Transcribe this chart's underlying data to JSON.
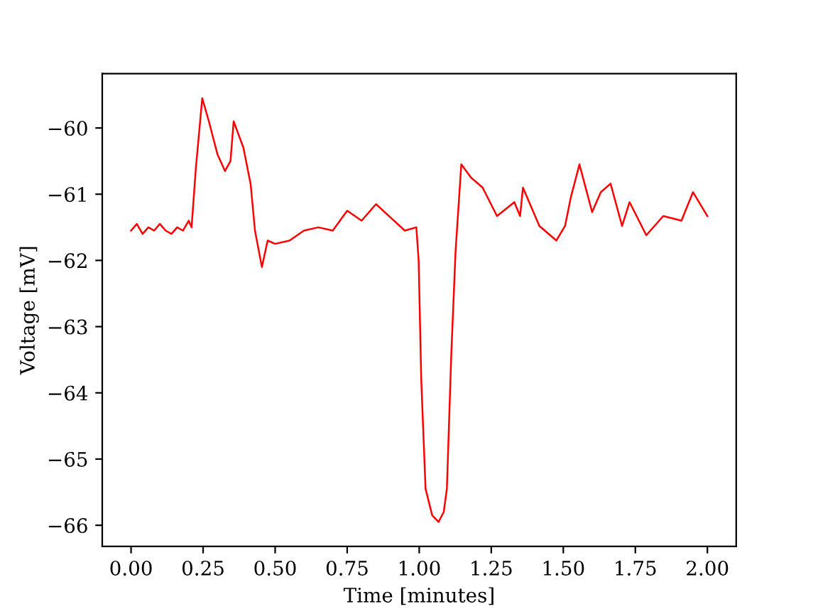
{
  "chart_data": {
    "type": "line",
    "xlabel": "Time [minutes]",
    "ylabel": "Voltage [mV]",
    "xlim": [
      -0.1,
      2.1
    ],
    "ylim": [
      -66.32,
      -59.18
    ],
    "xticks": [
      {
        "value": 0,
        "label": "0.00"
      },
      {
        "value": 0.25,
        "label": "0.25"
      },
      {
        "value": 0.5,
        "label": "0.50"
      },
      {
        "value": 0.75,
        "label": "0.75"
      },
      {
        "value": 1,
        "label": "1.00"
      },
      {
        "value": 1.25,
        "label": "1.25"
      },
      {
        "value": 1.5,
        "label": "1.50"
      },
      {
        "value": 1.75,
        "label": "1.75"
      },
      {
        "value": 2,
        "label": "2.00"
      }
    ],
    "yticks": [
      {
        "value": -66,
        "label": "−66"
      },
      {
        "value": -65,
        "label": "−65"
      },
      {
        "value": -64,
        "label": "−64"
      },
      {
        "value": -63,
        "label": "−63"
      },
      {
        "value": -62,
        "label": "−62"
      },
      {
        "value": -61,
        "label": "−61"
      },
      {
        "value": -60,
        "label": "−60"
      }
    ],
    "grid": false,
    "marker": "none",
    "line_style": "solid",
    "series": [
      {
        "color": "#ff0000",
        "x": [
          0.0,
          0.02,
          0.04,
          0.06,
          0.08,
          0.1,
          0.12,
          0.14,
          0.16,
          0.18,
          0.2,
          0.21,
          0.225,
          0.247,
          0.27,
          0.3,
          0.326,
          0.345,
          0.356,
          0.39,
          0.415,
          0.43,
          0.454,
          0.474,
          0.5,
          0.55,
          0.6,
          0.65,
          0.7,
          0.75,
          0.8,
          0.85,
          0.9,
          0.95,
          0.99,
          0.998,
          1.007,
          1.022,
          1.045,
          1.067,
          1.085,
          1.096,
          1.111,
          1.126,
          1.146,
          1.18,
          1.22,
          1.27,
          1.33,
          1.35,
          1.36,
          1.417,
          1.476,
          1.506,
          1.526,
          1.556,
          1.6,
          1.63,
          1.664,
          1.704,
          1.73,
          1.788,
          1.847,
          1.91,
          1.95,
          2.0
        ],
        "values": [
          -61.55,
          -61.45,
          -61.6,
          -61.5,
          -61.55,
          -61.45,
          -61.55,
          -61.6,
          -61.5,
          -61.55,
          -61.4,
          -61.5,
          -60.6,
          -59.55,
          -59.9,
          -60.4,
          -60.65,
          -60.5,
          -59.9,
          -60.3,
          -60.85,
          -61.55,
          -62.1,
          -61.7,
          -61.75,
          -61.7,
          -61.55,
          -61.5,
          -61.55,
          -61.25,
          -61.4,
          -61.15,
          -61.35,
          -61.55,
          -61.5,
          -62.0,
          -63.8,
          -65.45,
          -65.85,
          -65.95,
          -65.8,
          -65.45,
          -63.45,
          -61.87,
          -60.55,
          -60.75,
          -60.9,
          -61.33,
          -61.12,
          -61.33,
          -60.9,
          -61.48,
          -61.7,
          -61.48,
          -61.05,
          -60.55,
          -61.27,
          -60.97,
          -60.84,
          -61.48,
          -61.12,
          -61.62,
          -61.33,
          -61.4,
          -60.97,
          -61.33
        ]
      }
    ]
  }
}
